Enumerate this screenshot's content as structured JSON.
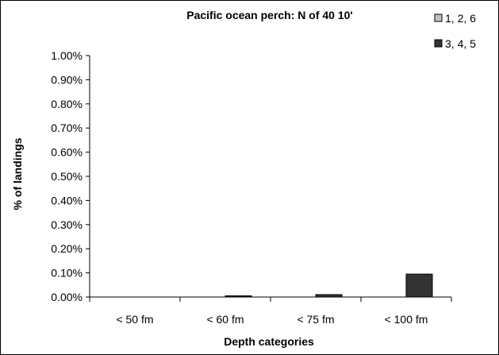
{
  "chart_data": {
    "type": "bar",
    "title": "Pacific ocean perch: N of 40 10'",
    "xlabel": "Depth categories",
    "ylabel": "% of landings",
    "categories": [
      "< 50 fm",
      "< 60 fm",
      "< 75 fm",
      "< 100 fm"
    ],
    "ylim": [
      0,
      0.01
    ],
    "yticks": [
      0,
      0.001,
      0.002,
      0.003,
      0.004,
      0.005,
      0.006,
      0.007,
      0.008,
      0.009,
      0.01
    ],
    "ytick_labels": [
      "0.00%",
      "0.10%",
      "0.20%",
      "0.30%",
      "0.40%",
      "0.50%",
      "0.60%",
      "0.70%",
      "0.80%",
      "0.90%",
      "1.00%"
    ],
    "grid": false,
    "legend_position": "top-right",
    "series": [
      {
        "name": "1, 2, 6",
        "color": "#c0c0c0",
        "values": [
          0,
          0,
          0,
          0
        ]
      },
      {
        "name": "3, 4, 5",
        "color": "#333333",
        "values": [
          0,
          5e-05,
          0.0001,
          0.00095
        ]
      }
    ]
  }
}
